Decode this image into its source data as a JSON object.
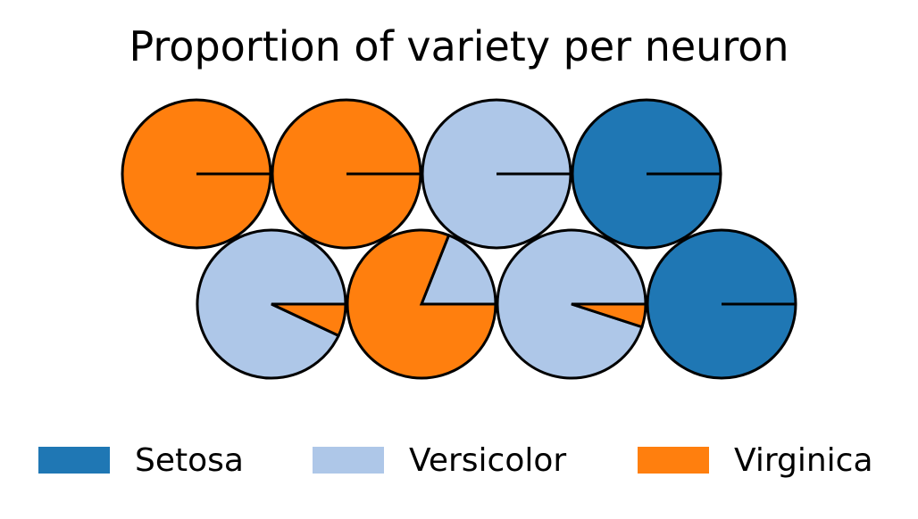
{
  "chart_data": {
    "type": "pie",
    "title": "Proportion of variety per neuron",
    "varieties": [
      "Setosa",
      "Versicolor",
      "Virginica"
    ],
    "colors": {
      "Setosa": "#1f77b4",
      "Versicolor": "#aec7e8",
      "Virginica": "#ff7f0e"
    },
    "neurons": [
      {
        "row": 0,
        "col": 0,
        "values": [
          0,
          0,
          1.0
        ]
      },
      {
        "row": 0,
        "col": 1,
        "values": [
          0,
          0,
          1.0
        ]
      },
      {
        "row": 0,
        "col": 2,
        "values": [
          0,
          1.0,
          0
        ]
      },
      {
        "row": 0,
        "col": 3,
        "values": [
          1.0,
          0,
          0
        ]
      },
      {
        "row": 1,
        "col": 0,
        "values": [
          0,
          0.93,
          0.07
        ]
      },
      {
        "row": 1,
        "col": 1,
        "values": [
          0,
          0.19,
          0.81
        ]
      },
      {
        "row": 1,
        "col": 2,
        "values": [
          0,
          0.95,
          0.05
        ]
      },
      {
        "row": 1,
        "col": 3,
        "values": [
          1.0,
          0,
          0
        ]
      }
    ],
    "legend": {
      "position": "bottom",
      "entries": [
        "Setosa",
        "Versicolor",
        "Virginica"
      ]
    }
  }
}
